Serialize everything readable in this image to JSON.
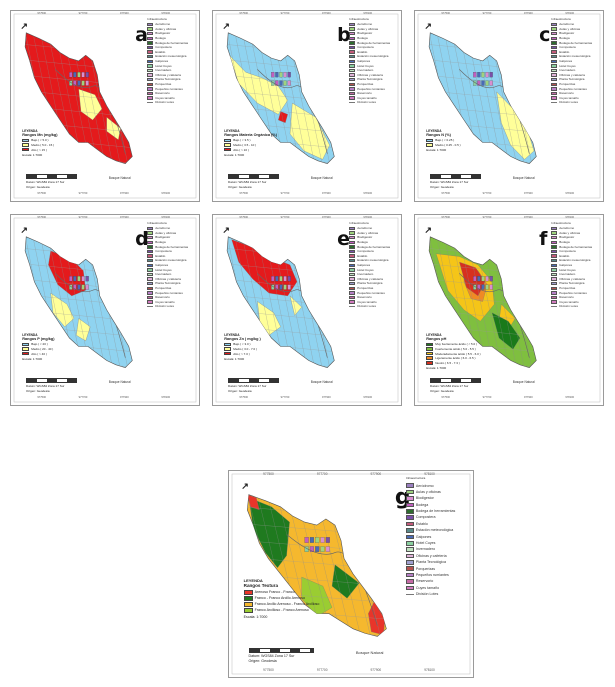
{
  "infra_title": "Infraestructura",
  "infra_items": [
    {
      "label": "Aeródromo",
      "color": "#9a7fbf"
    },
    {
      "label": "Aulas y oficinas",
      "color": "#9fd37f"
    },
    {
      "label": "Biodigestor",
      "color": "#d98fd0"
    },
    {
      "label": "Bodega",
      "color": "#c25fbf"
    },
    {
      "label": "Bodega de herramientas",
      "color": "#2e6b2e"
    },
    {
      "label": "Compostera",
      "color": "#7a4fa8"
    },
    {
      "label": "Establo",
      "color": "#c45a7a"
    },
    {
      "label": "Estación meteorológica",
      "color": "#5a8a8a"
    },
    {
      "label": "Galpones",
      "color": "#4a6ab5"
    },
    {
      "label": "Hotel Cuyes",
      "color": "#8ad0a0"
    },
    {
      "label": "Invernadero",
      "color": "#bfe2bf"
    },
    {
      "label": "Oficinas y cafetería",
      "color": "#e0b3d9"
    },
    {
      "label": "Planta Tecnológica",
      "color": "#a0a0d0"
    },
    {
      "label": "Porquerizas",
      "color": "#b5524f"
    },
    {
      "label": "Pequeños rumiantes",
      "color": "#b77fc7"
    },
    {
      "label": "Reservorio",
      "color": "#c46aa5"
    },
    {
      "label": "Cuyes tamaño",
      "color": "#d27bbf"
    }
  ],
  "infra_line_label": "División Lotes",
  "legend_heading": "LEYENDA",
  "scale_text": "Escala: 1:7000",
  "datum_text": "Datum: WGS84 Zona 17 Sur",
  "origin_text": "Origen: Geodesia",
  "bosque_label": "Bosque Natural",
  "coord_ticks": [
    "977500",
    "977700",
    "977900",
    "978100"
  ],
  "panels": [
    {
      "id": "a",
      "letter": "a",
      "legend_title": "Rangos Mn (mg/kg)",
      "base_color": "#e41a1c",
      "patch_color": "#ffff99",
      "classes": [
        {
          "label": "Bajo ( < 5.0 )",
          "color": "#9ecae1"
        },
        {
          "label": "Medio ( 5.0 - 15 )",
          "color": "#ffff99"
        },
        {
          "label": "Alto ( > 15 )",
          "color": "#e41a1c"
        }
      ]
    },
    {
      "id": "b",
      "letter": "b",
      "legend_title": "Rangos Materia Orgánica (%)",
      "base_color": "#8fd3f0",
      "patch_color": "#ffff99",
      "classes": [
        {
          "label": "Bajo ( < 3.5 )",
          "color": "#8fd3f0"
        },
        {
          "label": "Medio ( 3.5 - 10 )",
          "color": "#ffff99"
        },
        {
          "label": "Alto ( > 10 )",
          "color": "#e41a1c"
        }
      ]
    },
    {
      "id": "c",
      "letter": "c",
      "legend_title": "Rangos N (%)",
      "base_color": "#8fd3f0",
      "patch_color": "#ffff99",
      "classes": [
        {
          "label": "Bajo ( < 0.25 )",
          "color": "#8fd3f0"
        },
        {
          "label": "Medio ( 0.25 - 0.5 )",
          "color": "#ffff99"
        }
      ]
    },
    {
      "id": "d",
      "letter": "d",
      "legend_title": "Rangos P (mg/kg)",
      "base_color": "#8fd3f0",
      "patch_color": "#ffff99",
      "classes": [
        {
          "label": "Bajo ( < 20 )",
          "color": "#8fd3f0"
        },
        {
          "label": "Medio ( 20 - 40 )",
          "color": "#ffff99"
        },
        {
          "label": "Alto ( > 40 )",
          "color": "#e41a1c"
        }
      ]
    },
    {
      "id": "e",
      "letter": "e",
      "legend_title": "Rangos Zn ( mg/kg )",
      "base_color": "#8fd3f0",
      "patch_color": "#ffff99",
      "classes": [
        {
          "label": "Bajo ( < 3.0 )",
          "color": "#8fd3f0"
        },
        {
          "label": "Medio ( 3.0 - 7.0 )",
          "color": "#ffff99"
        },
        {
          "label": "Alto ( > 7.0 )",
          "color": "#e41a1c"
        }
      ]
    },
    {
      "id": "f",
      "letter": "f",
      "legend_title": "Rangos pH",
      "base_color": "#7fbf3f",
      "patch_color": "#f5c518",
      "classes": [
        {
          "label": "Muy fuertemente ácido ( < 5.0 )",
          "color": "#1a7a1a"
        },
        {
          "label": "Fuertemente ácido ( 5.0 - 5.5 )",
          "color": "#7fbf3f"
        },
        {
          "label": "Moderadamente ácido ( 5.5 - 6.0 )",
          "color": "#f5c518"
        },
        {
          "label": "Ligeramente ácido ( 6.0 - 6.5 )",
          "color": "#f08a24"
        },
        {
          "label": "Neutro ( 6.5 - 7.3 )",
          "color": "#d7301f"
        }
      ]
    },
    {
      "id": "g",
      "letter": "g",
      "legend_title": "Rangos Textura",
      "base_color": "#f5b82e",
      "patch_color": "#1f7a1f",
      "classes": [
        {
          "label": "Arenoso Franco - Franco",
          "color": "#e8352a"
        },
        {
          "label": "Franco - Franco Arcillo Arenoso",
          "color": "#1f7a1f"
        },
        {
          "label": "Franco Arcillo Arenoso - Franco Arcilloso",
          "color": "#f5b82e"
        },
        {
          "label": "Franco Arcilloso - Franco Arenoso",
          "color": "#9acd32"
        }
      ]
    }
  ]
}
